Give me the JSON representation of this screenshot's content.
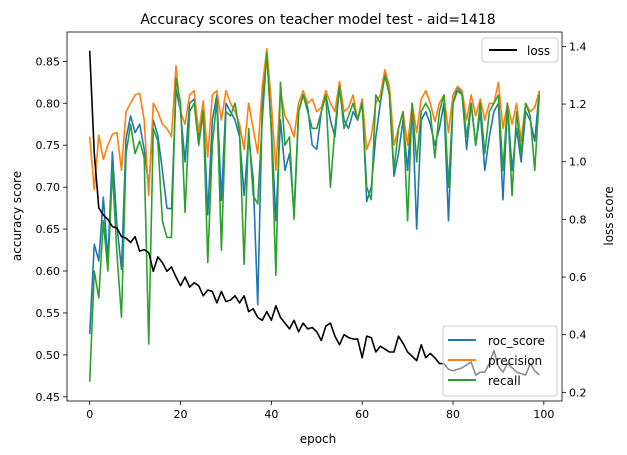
{
  "chart_data": {
    "type": "line",
    "title": "Accuracy scores on teacher model test - aid=1418",
    "xlabel": "epoch",
    "ylabel": "accuracy score",
    "y2label": "loss score",
    "xlim": [
      -5,
      104
    ],
    "ylim": [
      0.445,
      0.885
    ],
    "y2lim": [
      0.17,
      1.45
    ],
    "xticks": [
      0,
      20,
      40,
      60,
      80,
      100
    ],
    "xtick_labels": [
      "0",
      "20",
      "40",
      "60",
      "80",
      "100"
    ],
    "yticks": [
      0.45,
      0.5,
      0.55,
      0.6,
      0.65,
      0.7,
      0.75,
      0.8,
      0.85
    ],
    "ytick_labels": [
      "0.45",
      "0.50",
      "0.55",
      "0.60",
      "0.65",
      "0.70",
      "0.75",
      "0.80",
      "0.85"
    ],
    "y2ticks": [
      0.2,
      0.4,
      0.6,
      0.8,
      1.0,
      1.2,
      1.4
    ],
    "y2tick_labels": [
      "0.2",
      "0.4",
      "0.6",
      "0.8",
      "1.0",
      "1.2",
      "1.4"
    ],
    "grid": false,
    "series": [
      {
        "name": "roc_score",
        "axis": "left",
        "color": "#1f77b4",
        "values": [
          0.525,
          0.632,
          0.612,
          0.688,
          0.613,
          0.742,
          0.654,
          0.602,
          0.758,
          0.785,
          0.765,
          0.775,
          0.745,
          0.7,
          0.78,
          0.762,
          0.72,
          0.675,
          0.674,
          0.817,
          0.79,
          0.73,
          0.8,
          0.805,
          0.758,
          0.795,
          0.667,
          0.78,
          0.81,
          0.684,
          0.8,
          0.79,
          0.78,
          0.76,
          0.69,
          0.76,
          0.71,
          0.56,
          0.8,
          0.861,
          0.77,
          0.66,
          0.78,
          0.72,
          0.74,
          0.67,
          0.79,
          0.81,
          0.795,
          0.75,
          0.745,
          0.79,
          0.81,
          0.78,
          0.76,
          0.82,
          0.78,
          0.77,
          0.79,
          0.78,
          0.805,
          0.683,
          0.7,
          0.76,
          0.8,
          0.838,
          0.81,
          0.713,
          0.74,
          0.78,
          0.72,
          0.8,
          0.65,
          0.78,
          0.79,
          0.775,
          0.75,
          0.77,
          0.8,
          0.66,
          0.8,
          0.82,
          0.81,
          0.745,
          0.8,
          0.75,
          0.79,
          0.72,
          0.76,
          0.79,
          0.8,
          0.685,
          0.8,
          0.72,
          0.77,
          0.73,
          0.79,
          0.78,
          0.755,
          0.815
        ]
      },
      {
        "name": "precision",
        "axis": "left",
        "color": "#ff7f0e",
        "values": [
          0.76,
          0.697,
          0.762,
          0.733,
          0.75,
          0.763,
          0.765,
          0.72,
          0.79,
          0.8,
          0.81,
          0.812,
          0.78,
          0.69,
          0.8,
          0.79,
          0.775,
          0.77,
          0.76,
          0.845,
          0.79,
          0.775,
          0.81,
          0.815,
          0.765,
          0.803,
          0.736,
          0.81,
          0.815,
          0.78,
          0.815,
          0.8,
          0.79,
          0.775,
          0.745,
          0.8,
          0.77,
          0.74,
          0.82,
          0.865,
          0.8,
          0.72,
          0.815,
          0.785,
          0.775,
          0.76,
          0.8,
          0.815,
          0.8,
          0.805,
          0.79,
          0.795,
          0.815,
          0.8,
          0.79,
          0.826,
          0.79,
          0.795,
          0.81,
          0.78,
          0.805,
          0.745,
          0.76,
          0.8,
          0.81,
          0.84,
          0.82,
          0.75,
          0.77,
          0.79,
          0.75,
          0.8,
          0.765,
          0.805,
          0.815,
          0.8,
          0.778,
          0.8,
          0.81,
          0.765,
          0.81,
          0.82,
          0.815,
          0.78,
          0.81,
          0.785,
          0.805,
          0.78,
          0.8,
          0.8,
          0.825,
          0.77,
          0.8,
          0.775,
          0.8,
          0.755,
          0.8,
          0.79,
          0.795,
          0.815
        ]
      },
      {
        "name": "recall",
        "axis": "left",
        "color": "#2ca02c",
        "values": [
          0.468,
          0.6,
          0.568,
          0.66,
          0.6,
          0.72,
          0.62,
          0.545,
          0.74,
          0.775,
          0.74,
          0.755,
          0.735,
          0.513,
          0.77,
          0.755,
          0.66,
          0.64,
          0.64,
          0.83,
          0.8,
          0.67,
          0.79,
          0.8,
          0.75,
          0.79,
          0.61,
          0.75,
          0.805,
          0.625,
          0.79,
          0.785,
          0.8,
          0.765,
          0.608,
          0.77,
          0.69,
          0.68,
          0.78,
          0.86,
          0.765,
          0.595,
          0.825,
          0.75,
          0.76,
          0.662,
          0.79,
          0.81,
          0.79,
          0.77,
          0.77,
          0.79,
          0.81,
          0.7,
          0.77,
          0.82,
          0.77,
          0.785,
          0.8,
          0.78,
          0.8,
          0.7,
          0.685,
          0.81,
          0.8,
          0.833,
          0.81,
          0.72,
          0.77,
          0.79,
          0.66,
          0.8,
          0.73,
          0.79,
          0.8,
          0.79,
          0.735,
          0.79,
          0.81,
          0.7,
          0.8,
          0.815,
          0.81,
          0.76,
          0.8,
          0.75,
          0.8,
          0.74,
          0.79,
          0.8,
          0.81,
          0.72,
          0.8,
          0.69,
          0.79,
          0.74,
          0.8,
          0.785,
          0.72,
          0.81
        ]
      },
      {
        "name": "loss",
        "axis": "right",
        "color": "#000000",
        "values": [
          1.385,
          1.03,
          0.84,
          0.815,
          0.8,
          0.775,
          0.77,
          0.74,
          0.735,
          0.72,
          0.74,
          0.69,
          0.695,
          0.685,
          0.62,
          0.67,
          0.65,
          0.62,
          0.635,
          0.6,
          0.57,
          0.6,
          0.565,
          0.58,
          0.57,
          0.535,
          0.555,
          0.55,
          0.51,
          0.55,
          0.515,
          0.52,
          0.535,
          0.51,
          0.535,
          0.48,
          0.49,
          0.46,
          0.45,
          0.48,
          0.45,
          0.5,
          0.46,
          0.44,
          0.42,
          0.45,
          0.41,
          0.44,
          0.42,
          0.425,
          0.41,
          0.38,
          0.43,
          0.44,
          0.395,
          0.365,
          0.4,
          0.39,
          0.385,
          0.385,
          0.32,
          0.395,
          0.39,
          0.34,
          0.36,
          0.35,
          0.34,
          0.34,
          0.395,
          0.37,
          0.34,
          0.325,
          0.31,
          0.365,
          0.32,
          0.335,
          0.32,
          0.3,
          0.3,
          0.28,
          0.275,
          0.28,
          0.285,
          0.295,
          0.305,
          0.26,
          0.27,
          0.27,
          0.3,
          0.345,
          0.29,
          0.27,
          0.3,
          0.285,
          0.27,
          0.265,
          0.26,
          0.3,
          0.275,
          0.26
        ]
      }
    ],
    "legends": [
      {
        "placement": "upper-right",
        "entries": [
          "loss"
        ]
      },
      {
        "placement": "lower-right",
        "entries": [
          "roc_score",
          "precision",
          "recall"
        ]
      }
    ]
  }
}
